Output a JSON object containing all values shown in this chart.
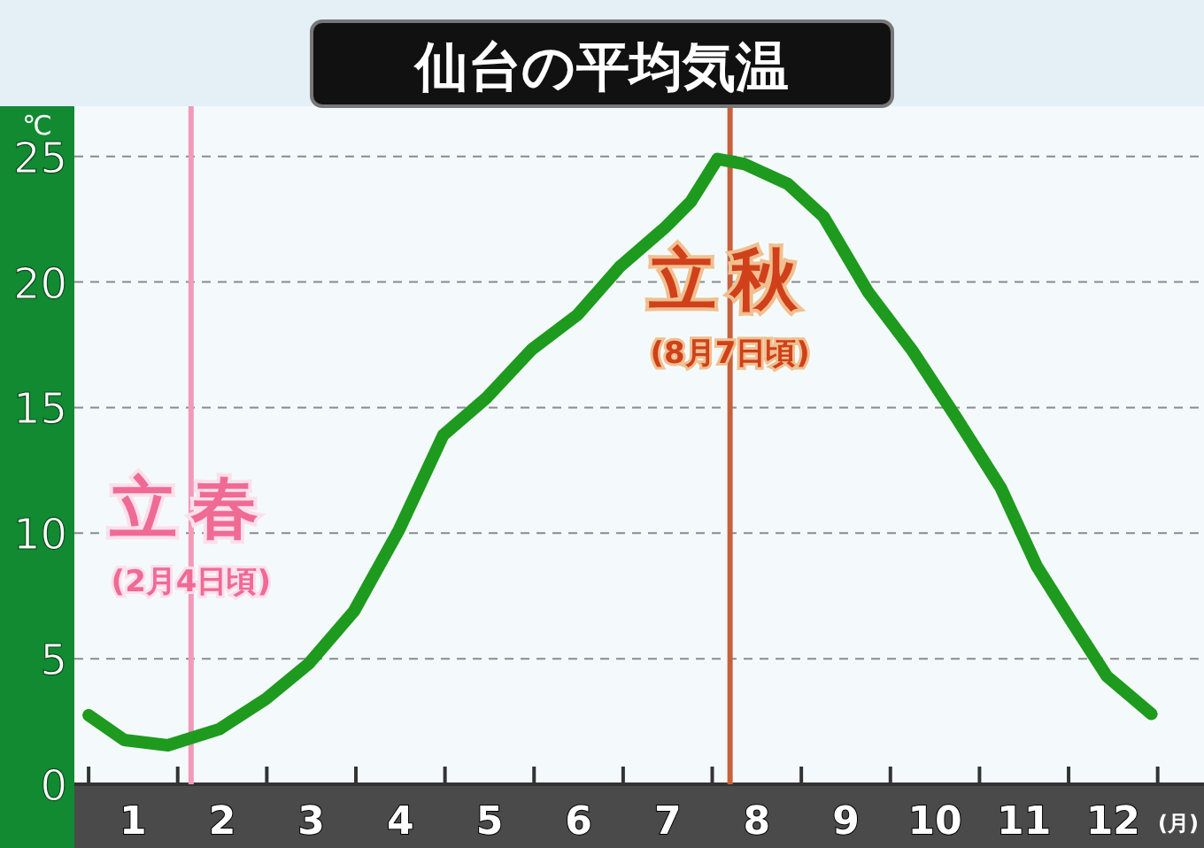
{
  "chart_data": {
    "type": "line",
    "title": "仙台の平均気温",
    "xlabel": "(月)",
    "ylabel": "℃",
    "x": [
      0.0,
      0.4,
      0.89,
      1.47,
      1.99,
      2.47,
      2.98,
      3.48,
      3.98,
      4.47,
      4.97,
      5.49,
      5.96,
      6.48,
      6.76,
      7.06,
      7.36,
      7.85,
      8.25,
      8.75,
      9.24,
      9.74,
      10.24,
      10.64,
      11.03,
      11.43,
      11.93
    ],
    "series": [
      {
        "color": "#1e9a1e",
        "values": [
          2.75,
          1.76,
          1.55,
          2.2,
          3.4,
          4.8,
          6.9,
          10.1,
          13.9,
          15.4,
          17.3,
          18.7,
          20.6,
          22.2,
          23.2,
          24.9,
          24.7,
          23.9,
          22.6,
          19.6,
          17.3,
          14.6,
          11.8,
          8.7,
          6.5,
          4.3,
          2.8
        ]
      }
    ],
    "xlim": [
      -0.16,
      12.52
    ],
    "ylim": [
      0,
      27
    ],
    "xticks": [
      {
        "value": 0,
        "label": null
      },
      {
        "value": 0.5,
        "label": "1"
      },
      {
        "value": 1,
        "label": null
      },
      {
        "value": 1.5,
        "label": "2"
      },
      {
        "value": 2,
        "label": null
      },
      {
        "value": 2.5,
        "label": "3"
      },
      {
        "value": 3,
        "label": null
      },
      {
        "value": 3.5,
        "label": "4"
      },
      {
        "value": 4,
        "label": null
      },
      {
        "value": 4.5,
        "label": "5"
      },
      {
        "value": 5,
        "label": null
      },
      {
        "value": 5.5,
        "label": "6"
      },
      {
        "value": 6,
        "label": null
      },
      {
        "value": 6.5,
        "label": "7"
      },
      {
        "value": 7,
        "label": null
      },
      {
        "value": 7.5,
        "label": "8"
      },
      {
        "value": 8,
        "label": null
      },
      {
        "value": 8.5,
        "label": "9"
      },
      {
        "value": 9,
        "label": null
      },
      {
        "value": 9.5,
        "label": "10"
      },
      {
        "value": 10,
        "label": null
      },
      {
        "value": 10.5,
        "label": "11"
      },
      {
        "value": 11,
        "label": null
      },
      {
        "value": 11.5,
        "label": "12"
      },
      {
        "value": 12,
        "label": null
      }
    ],
    "yticks": [
      0,
      5,
      10,
      15,
      20,
      25
    ],
    "grid": "y",
    "marker": "none",
    "line_style": "solid",
    "ref_lines": [
      {
        "axis": "x",
        "value": 1.15,
        "label": "立春",
        "color": "#f29ab8"
      },
      {
        "axis": "x",
        "value": 7.2,
        "label": "立秋",
        "color": "#c9603c"
      }
    ],
    "annotations": [
      {
        "text": "(2月4日頃)",
        "x": 1.15,
        "y": 8.1
      },
      {
        "text": "(8月7日頃)",
        "x": 7.2,
        "y": 17.2
      }
    ]
  }
}
